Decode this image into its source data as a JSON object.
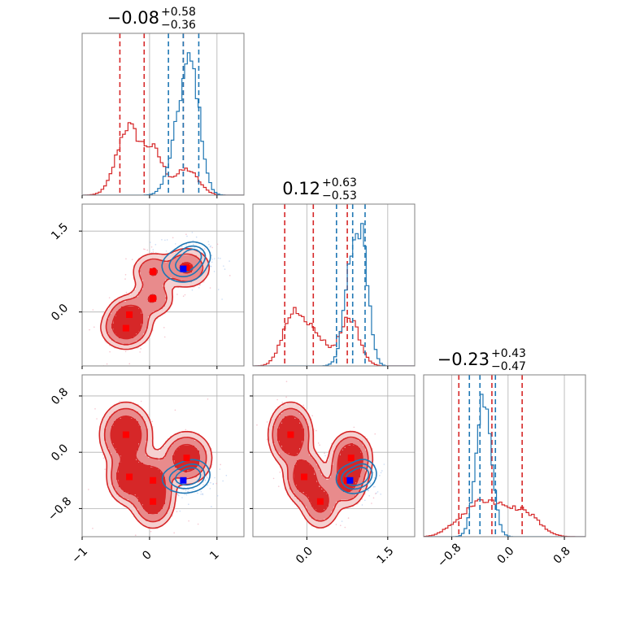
{
  "colors": {
    "red": "#d62728",
    "red_mid": "#e88b8c",
    "red_light": "#f5d0d0",
    "blue": "#1f77b4",
    "blue_marker": "#0000ff",
    "red_marker": "#ff0000",
    "grid": "#b0b0b0",
    "axis": "#808080"
  },
  "chart_data": {
    "type": "corner",
    "grid": true,
    "parameters": [
      {
        "range": [
          -1.0,
          1.4
        ],
        "ticks": [
          -1,
          0,
          1
        ],
        "tick_labels": [
          "−1",
          "0",
          "1"
        ]
      },
      {
        "range": [
          -1.0,
          2.0
        ],
        "ticks": [
          0.0,
          1.5
        ],
        "tick_labels": [
          "0.0",
          "1.5"
        ]
      },
      {
        "range": [
          -1.2,
          1.1
        ],
        "ticks": [
          -0.8,
          0.0,
          0.8
        ],
        "tick_labels": [
          "−0.8",
          "0.0",
          "0.8"
        ]
      }
    ],
    "titles": [
      {
        "median": "−0.08",
        "plus": "+0.58",
        "minus": "−0.36"
      },
      {
        "median": "0.12",
        "plus": "+0.63",
        "minus": "−0.53"
      },
      {
        "median": "−0.23",
        "plus": "+0.43",
        "minus": "−0.47"
      }
    ],
    "series": [
      {
        "color": "red",
        "quantiles": [
          [
            -0.44,
            -0.08,
            0.5
          ],
          [
            -0.41,
            0.12,
            0.75
          ],
          [
            -0.7,
            -0.23,
            0.2
          ]
        ],
        "components": [
          {
            "w": 0.3,
            "mu": [
              -0.35,
              -0.3,
              0.25
            ],
            "sd": [
              0.17,
              0.18,
              0.2
            ]
          },
          {
            "w": 0.2,
            "mu": [
              -0.3,
              -0.05,
              -0.35
            ],
            "sd": [
              0.15,
              0.17,
              0.18
            ]
          },
          {
            "w": 0.15,
            "mu": [
              0.05,
              0.25,
              -0.7
            ],
            "sd": [
              0.15,
              0.17,
              0.18
            ]
          },
          {
            "w": 0.2,
            "mu": [
              0.55,
              0.82,
              -0.08
            ],
            "sd": [
              0.17,
              0.18,
              0.17
            ]
          },
          {
            "w": 0.15,
            "mu": [
              0.05,
              0.75,
              -0.4
            ],
            "sd": [
              0.15,
              0.17,
              0.18
            ]
          }
        ],
        "markers": [
          [
            -0.35,
            -0.3,
            0.25
          ],
          [
            -0.3,
            -0.05,
            -0.35
          ],
          [
            0.05,
            0.25,
            -0.7
          ],
          [
            0.55,
            0.82,
            -0.08
          ],
          [
            0.05,
            0.75,
            -0.4
          ]
        ]
      },
      {
        "color": "blue",
        "quantiles": [
          [
            0.28,
            0.5,
            0.73
          ],
          [
            0.55,
            0.85,
            1.08
          ],
          [
            -0.55,
            -0.4,
            -0.18
          ]
        ],
        "components": [
          {
            "w": 0.6,
            "mu": [
              0.5,
              0.85,
              -0.38
            ],
            "sd": [
              0.16,
              0.15,
              0.1
            ]
          },
          {
            "w": 0.4,
            "mu": [
              0.65,
              1.05,
              -0.3
            ],
            "sd": [
              0.12,
              0.12,
              0.1
            ]
          }
        ],
        "markers": [
          [
            0.5,
            0.8,
            -0.4
          ]
        ]
      }
    ]
  }
}
